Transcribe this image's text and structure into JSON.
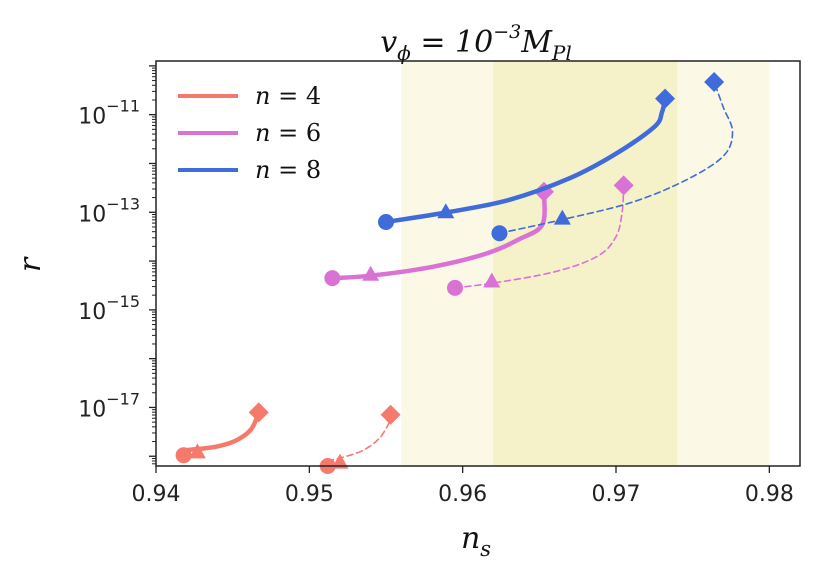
{
  "chart_data": {
    "type": "line",
    "title": "v_φ = 10^{-3} M_{Pl}",
    "xlabel": "n_s",
    "ylabel": "r",
    "xlim": [
      0.94,
      0.982
    ],
    "ylim_log10": [
      -18.2,
      -9.9
    ],
    "xticks": [
      0.94,
      0.95,
      0.96,
      0.97,
      0.98
    ],
    "yticks_log10": [
      -11,
      -13,
      -15,
      -17
    ],
    "bands": [
      {
        "name": "outer",
        "x": [
          0.956,
          0.98
        ],
        "color": "#fbf8e6"
      },
      {
        "name": "inner",
        "x": [
          0.962,
          0.974
        ],
        "color": "#f5f1c9"
      }
    ],
    "series": [
      {
        "name": "n = 4",
        "color": "#f57a6b",
        "solid": {
          "points": [
            [
              0.9418,
              -17.88
            ],
            [
              0.9428,
              -17.85
            ],
            [
              0.944,
              -17.8
            ],
            [
              0.9452,
              -17.68
            ],
            [
              0.9462,
              -17.45
            ],
            [
              0.9467,
              -17.1
            ]
          ],
          "start": [
            0.9418,
            -17.98
          ],
          "mid": [
            0.9427,
            -17.92
          ],
          "end": [
            0.9467,
            -17.1
          ]
        },
        "dashed": {
          "points": [
            [
              0.9512,
              -18.1
            ],
            [
              0.9522,
              -18.02
            ],
            [
              0.9535,
              -17.88
            ],
            [
              0.9546,
              -17.62
            ],
            [
              0.9553,
              -17.25
            ],
            [
              0.9553,
              -17.15
            ]
          ],
          "start": [
            0.9512,
            -18.2
          ],
          "mid": [
            0.952,
            -18.13
          ],
          "end": [
            0.9553,
            -17.15
          ]
        }
      },
      {
        "name": "n = 6",
        "color": "#da72d6",
        "solid": {
          "points": [
            [
              0.9515,
              -14.35
            ],
            [
              0.954,
              -14.3
            ],
            [
              0.958,
              -14.12
            ],
            [
              0.9615,
              -13.85
            ],
            [
              0.9637,
              -13.55
            ],
            [
              0.9652,
              -13.25
            ],
            [
              0.9653,
              -12.58
            ]
          ],
          "start": [
            0.9515,
            -14.35
          ],
          "mid": [
            0.954,
            -14.28
          ],
          "end": [
            0.9653,
            -12.58
          ]
        },
        "dashed": {
          "points": [
            [
              0.9595,
              -14.55
            ],
            [
              0.962,
              -14.45
            ],
            [
              0.966,
              -14.22
            ],
            [
              0.9688,
              -13.9
            ],
            [
              0.97,
              -13.5
            ],
            [
              0.9704,
              -13.0
            ],
            [
              0.9705,
              -12.45
            ]
          ],
          "start": [
            0.9595,
            -14.55
          ],
          "mid": [
            0.9619,
            -14.42
          ],
          "end": [
            0.9705,
            -12.45
          ]
        }
      },
      {
        "name": "n = 8",
        "color": "#3f6bdb",
        "solid": {
          "points": [
            [
              0.955,
              -13.2
            ],
            [
              0.959,
              -13.0
            ],
            [
              0.963,
              -12.75
            ],
            [
              0.967,
              -12.3
            ],
            [
              0.97,
              -11.8
            ],
            [
              0.9725,
              -11.25
            ],
            [
              0.973,
              -10.95
            ],
            [
              0.9732,
              -10.67
            ]
          ],
          "start": [
            0.955,
            -13.2
          ],
          "mid": [
            0.9589,
            -13.0
          ],
          "end": [
            0.9732,
            -10.67
          ]
        },
        "dashed": {
          "points": [
            [
              0.9624,
              -13.43
            ],
            [
              0.9665,
              -13.15
            ],
            [
              0.971,
              -12.8
            ],
            [
              0.9745,
              -12.35
            ],
            [
              0.977,
              -11.85
            ],
            [
              0.9776,
              -11.35
            ],
            [
              0.977,
              -10.85
            ],
            [
              0.9764,
              -10.33
            ]
          ],
          "start": [
            0.9624,
            -13.43
          ],
          "mid": [
            0.9665,
            -13.13
          ],
          "end": [
            0.9764,
            -10.33
          ]
        }
      }
    ],
    "legend": {
      "placement": "top-left",
      "entries": [
        "n = 4",
        "n = 6",
        "n = 8"
      ]
    }
  }
}
